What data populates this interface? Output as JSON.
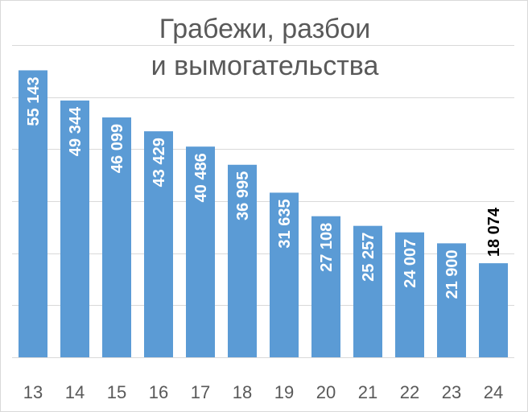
{
  "chart_data": {
    "type": "bar",
    "title_lines": [
      "Грабежи, разбои",
      "и вымогательства"
    ],
    "categories": [
      "13",
      "14",
      "15",
      "16",
      "17",
      "18",
      "19",
      "20",
      "21",
      "22",
      "23",
      "24"
    ],
    "values": [
      55143,
      49344,
      46099,
      43429,
      40486,
      36995,
      31635,
      27108,
      25257,
      24007,
      21900,
      18074
    ],
    "data_labels": [
      "55 143",
      "49 344",
      "46 099",
      "43 429",
      "40 486",
      "36 995",
      "31 635",
      "27 108",
      "25 257",
      "24 007",
      "21 900",
      "18 074"
    ],
    "xlabel": "",
    "ylabel": "",
    "ylim": [
      0,
      60000
    ],
    "grid": true,
    "bar_color": "#5b9bd5",
    "label_color_inside": "#ffffff",
    "label_color_outside": "#000000"
  }
}
